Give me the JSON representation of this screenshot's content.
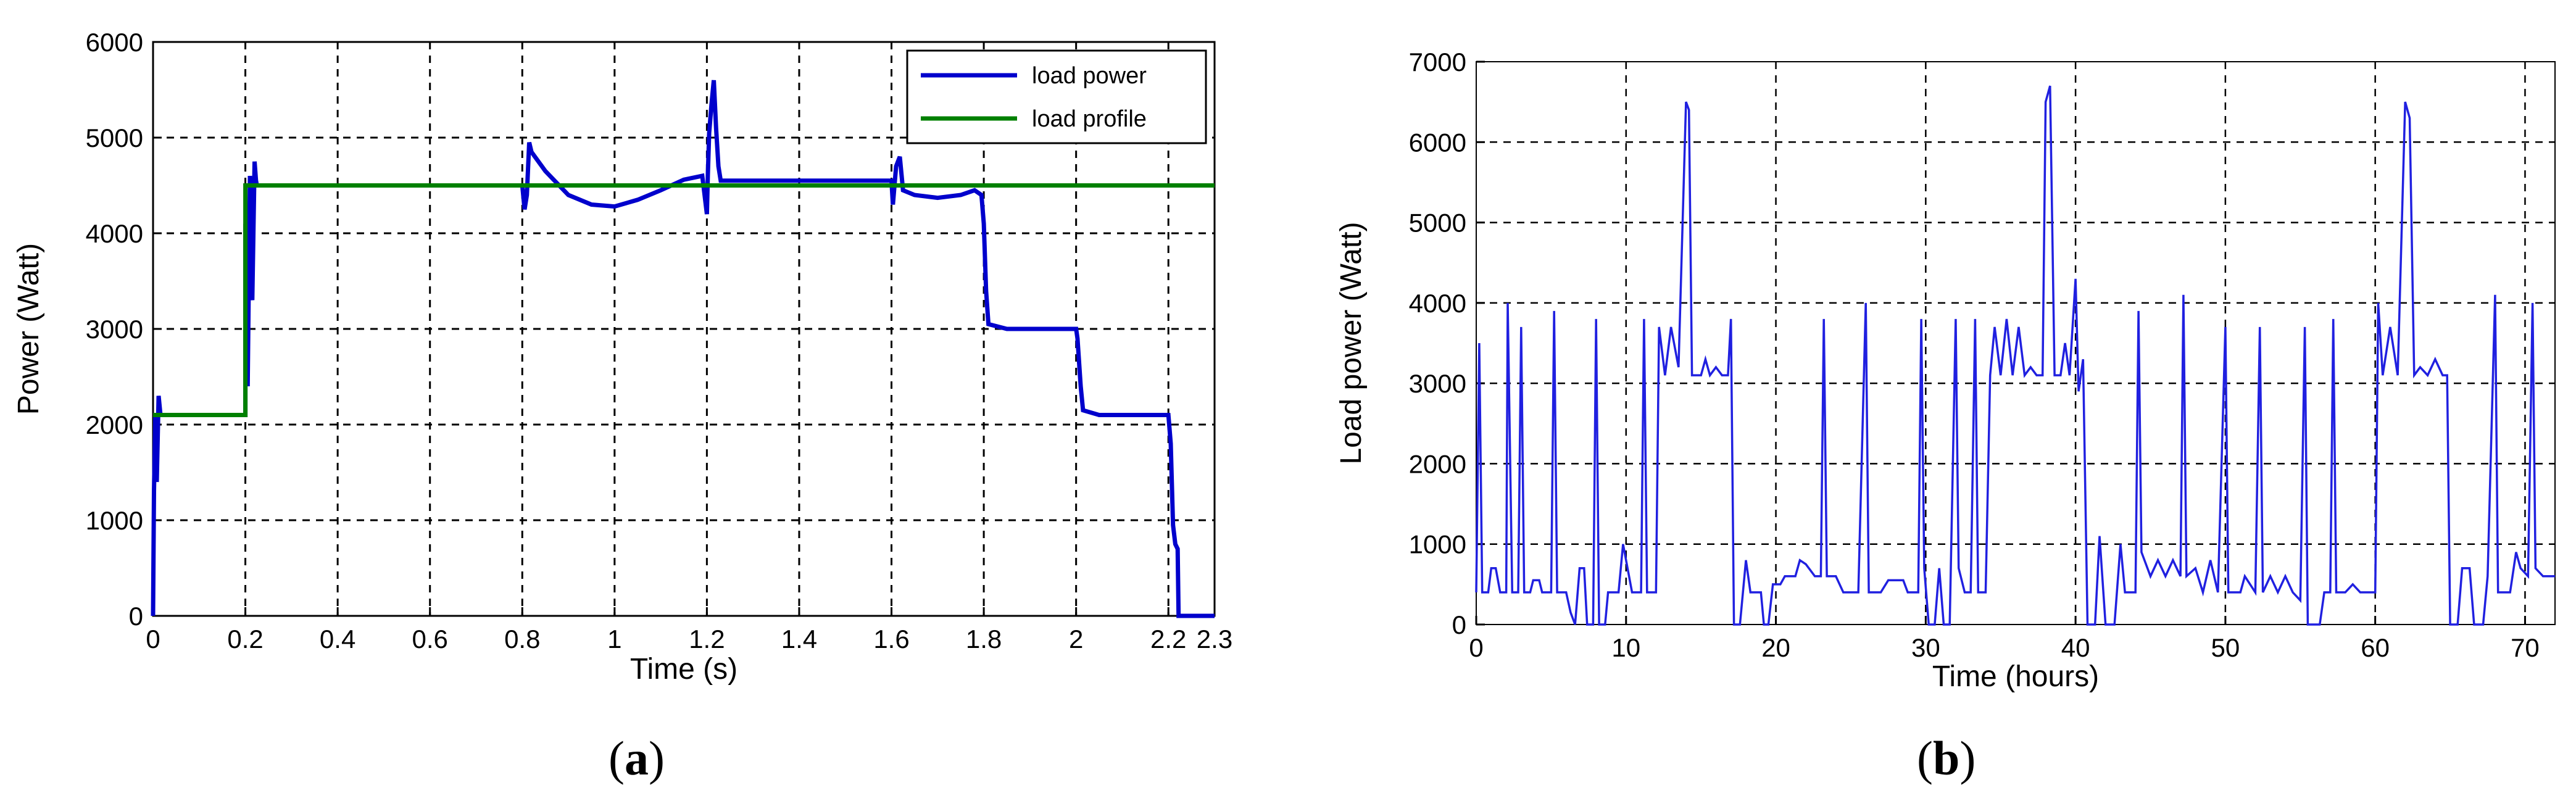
{
  "chart_data": [
    {
      "type": "line",
      "panel_label": "a",
      "xlabel": "Time (s)",
      "ylabel": "Power (Watt)",
      "xlim": [
        0,
        2.3
      ],
      "ylim": [
        0,
        6000
      ],
      "xticks": [
        0,
        0.2,
        0.4,
        0.6,
        0.8,
        1,
        1.2,
        1.4,
        1.6,
        1.8,
        2,
        2.2,
        2.3
      ],
      "xtick_labels": [
        "0",
        "0.2",
        "0.4",
        "0.6",
        "0.8",
        "1",
        "1.2",
        "1.4",
        "1.6",
        "1.8",
        "2",
        "2.2",
        "2.3"
      ],
      "yticks": [
        0,
        1000,
        2000,
        3000,
        4000,
        5000,
        6000
      ],
      "ytick_labels": [
        "0",
        "1000",
        "2000",
        "3000",
        "4000",
        "5000",
        "6000"
      ],
      "grid": true,
      "legend_position": "top-right",
      "series": [
        {
          "name": "load power",
          "color": "#0000cc",
          "points": [
            [
              0,
              0
            ],
            [
              0.002,
              1300
            ],
            [
              0.005,
              2100
            ],
            [
              0.008,
              1400
            ],
            [
              0.012,
              2300
            ],
            [
              0.016,
              2100
            ],
            [
              0.2,
              2100
            ],
            [
              0.2,
              4100
            ],
            [
              0.202,
              3500
            ],
            [
              0.205,
              2400
            ],
            [
              0.21,
              4600
            ],
            [
              0.215,
              3300
            ],
            [
              0.22,
              4750
            ],
            [
              0.223,
              4550
            ],
            [
              0.225,
              4500
            ],
            [
              0.8,
              4500
            ],
            [
              0.805,
              4250
            ],
            [
              0.81,
              4400
            ],
            [
              0.815,
              4950
            ],
            [
              0.82,
              4850
            ],
            [
              0.85,
              4650
            ],
            [
              0.9,
              4400
            ],
            [
              0.95,
              4300
            ],
            [
              1.0,
              4280
            ],
            [
              1.05,
              4350
            ],
            [
              1.1,
              4450
            ],
            [
              1.15,
              4560
            ],
            [
              1.19,
              4600
            ],
            [
              1.2,
              4200
            ],
            [
              1.202,
              4600
            ],
            [
              1.205,
              5050
            ],
            [
              1.21,
              5350
            ],
            [
              1.215,
              5600
            ],
            [
              1.22,
              5100
            ],
            [
              1.225,
              4700
            ],
            [
              1.23,
              4550
            ],
            [
              1.6,
              4550
            ],
            [
              1.603,
              4300
            ],
            [
              1.61,
              4700
            ],
            [
              1.618,
              4800
            ],
            [
              1.625,
              4450
            ],
            [
              1.65,
              4400
            ],
            [
              1.7,
              4370
            ],
            [
              1.75,
              4400
            ],
            [
              1.78,
              4450
            ],
            [
              1.795,
              4400
            ],
            [
              1.8,
              4100
            ],
            [
              1.805,
              3400
            ],
            [
              1.81,
              3050
            ],
            [
              1.85,
              3000
            ],
            [
              2.0,
              3000
            ],
            [
              2.003,
              2900
            ],
            [
              2.01,
              2400
            ],
            [
              2.015,
              2150
            ],
            [
              2.05,
              2100
            ],
            [
              2.1,
              2100
            ],
            [
              2.2,
              2100
            ],
            [
              2.205,
              1800
            ],
            [
              2.21,
              950
            ],
            [
              2.215,
              750
            ],
            [
              2.22,
              700
            ],
            [
              2.222,
              0
            ],
            [
              2.3,
              0
            ]
          ]
        },
        {
          "name": "load profile",
          "color": "#008000",
          "points": [
            [
              0,
              2100
            ],
            [
              0.2,
              2100
            ],
            [
              0.2,
              4500
            ],
            [
              2.3,
              4500
            ]
          ]
        }
      ]
    },
    {
      "type": "line",
      "panel_label": "b",
      "xlabel": "Time (hours)",
      "ylabel": "Load power (Watt)",
      "xlim": [
        0,
        72
      ],
      "ylim": [
        0,
        7000
      ],
      "xticks": [
        0,
        10,
        20,
        30,
        40,
        50,
        60,
        70
      ],
      "xtick_labels": [
        "0",
        "10",
        "20",
        "30",
        "40",
        "50",
        "60",
        "70"
      ],
      "yticks": [
        0,
        1000,
        2000,
        3000,
        4000,
        5000,
        6000,
        7000
      ],
      "ytick_labels": [
        "0",
        "1000",
        "2000",
        "3000",
        "4000",
        "5000",
        "6000",
        "7000"
      ],
      "grid": true,
      "series": [
        {
          "name": "",
          "color": "#2020e0",
          "points": [
            [
              0,
              400
            ],
            [
              0.2,
              3500
            ],
            [
              0.4,
              400
            ],
            [
              0.8,
              400
            ],
            [
              1,
              700
            ],
            [
              1.3,
              700
            ],
            [
              1.6,
              400
            ],
            [
              2,
              400
            ],
            [
              2.1,
              4000
            ],
            [
              2.4,
              400
            ],
            [
              2.8,
              400
            ],
            [
              3,
              3700
            ],
            [
              3.2,
              400
            ],
            [
              3.6,
              400
            ],
            [
              3.8,
              550
            ],
            [
              4.2,
              550
            ],
            [
              4.4,
              400
            ],
            [
              5,
              400
            ],
            [
              5.2,
              3900
            ],
            [
              5.4,
              400
            ],
            [
              6,
              400
            ],
            [
              6.3,
              150
            ],
            [
              6.6,
              0
            ],
            [
              6.9,
              700
            ],
            [
              7.2,
              700
            ],
            [
              7.4,
              0
            ],
            [
              7.8,
              0
            ],
            [
              8,
              3800
            ],
            [
              8.2,
              0
            ],
            [
              8.6,
              0
            ],
            [
              8.8,
              400
            ],
            [
              9.5,
              400
            ],
            [
              9.8,
              1000
            ],
            [
              10.1,
              700
            ],
            [
              10.4,
              400
            ],
            [
              11,
              400
            ],
            [
              11.2,
              3800
            ],
            [
              11.4,
              400
            ],
            [
              12,
              400
            ],
            [
              12.2,
              3700
            ],
            [
              12.6,
              3100
            ],
            [
              13,
              3700
            ],
            [
              13.5,
              3200
            ],
            [
              14,
              6500
            ],
            [
              14.2,
              6400
            ],
            [
              14.4,
              3100
            ],
            [
              15,
              3100
            ],
            [
              15.3,
              3300
            ],
            [
              15.6,
              3100
            ],
            [
              16,
              3200
            ],
            [
              16.4,
              3100
            ],
            [
              16.8,
              3100
            ],
            [
              17,
              3800
            ],
            [
              17.2,
              0
            ],
            [
              17.6,
              0
            ],
            [
              18,
              800
            ],
            [
              18.3,
              400
            ],
            [
              19,
              400
            ],
            [
              19.2,
              0
            ],
            [
              19.5,
              0
            ],
            [
              19.8,
              500
            ],
            [
              20.3,
              500
            ],
            [
              20.6,
              600
            ],
            [
              21.3,
              600
            ],
            [
              21.6,
              800
            ],
            [
              22,
              750
            ],
            [
              22.6,
              600
            ],
            [
              23,
              600
            ],
            [
              23.2,
              3800
            ],
            [
              23.4,
              600
            ],
            [
              24,
              600
            ],
            [
              24.5,
              400
            ],
            [
              25.5,
              400
            ],
            [
              26,
              4000
            ],
            [
              26.2,
              400
            ],
            [
              27,
              400
            ],
            [
              27.5,
              550
            ],
            [
              28.5,
              550
            ],
            [
              28.8,
              400
            ],
            [
              29.5,
              400
            ],
            [
              29.7,
              3800
            ],
            [
              29.9,
              700
            ],
            [
              30.2,
              0
            ],
            [
              30.6,
              0
            ],
            [
              30.9,
              700
            ],
            [
              31.2,
              0
            ],
            [
              31.6,
              0
            ],
            [
              32,
              3800
            ],
            [
              32.2,
              700
            ],
            [
              32.6,
              400
            ],
            [
              33,
              400
            ],
            [
              33.3,
              3800
            ],
            [
              33.5,
              400
            ],
            [
              34,
              400
            ],
            [
              34.3,
              3100
            ],
            [
              34.6,
              3700
            ],
            [
              35,
              3100
            ],
            [
              35.4,
              3800
            ],
            [
              35.8,
              3100
            ],
            [
              36.2,
              3700
            ],
            [
              36.6,
              3100
            ],
            [
              37,
              3200
            ],
            [
              37.4,
              3100
            ],
            [
              37.8,
              3100
            ],
            [
              38,
              6500
            ],
            [
              38.3,
              6700
            ],
            [
              38.6,
              3100
            ],
            [
              39,
              3100
            ],
            [
              39.3,
              3500
            ],
            [
              39.6,
              3100
            ],
            [
              40,
              4300
            ],
            [
              40.2,
              2900
            ],
            [
              40.5,
              3300
            ],
            [
              40.8,
              0
            ],
            [
              41.3,
              0
            ],
            [
              41.6,
              1100
            ],
            [
              42,
              0
            ],
            [
              42.6,
              0
            ],
            [
              43,
              1000
            ],
            [
              43.3,
              400
            ],
            [
              44,
              400
            ],
            [
              44.2,
              3900
            ],
            [
              44.4,
              900
            ],
            [
              45,
              600
            ],
            [
              45.5,
              800
            ],
            [
              46,
              600
            ],
            [
              46.5,
              800
            ],
            [
              47,
              600
            ],
            [
              47.2,
              4100
            ],
            [
              47.4,
              600
            ],
            [
              48,
              700
            ],
            [
              48.5,
              400
            ],
            [
              49,
              800
            ],
            [
              49.5,
              400
            ],
            [
              50,
              3700
            ],
            [
              50.2,
              400
            ],
            [
              51,
              400
            ],
            [
              51.3,
              600
            ],
            [
              52,
              400
            ],
            [
              52.3,
              3700
            ],
            [
              52.5,
              400
            ],
            [
              53,
              600
            ],
            [
              53.5,
              400
            ],
            [
              54,
              600
            ],
            [
              54.5,
              400
            ],
            [
              55,
              300
            ],
            [
              55.3,
              3700
            ],
            [
              55.5,
              0
            ],
            [
              56.3,
              0
            ],
            [
              56.6,
              400
            ],
            [
              57,
              400
            ],
            [
              57.2,
              3800
            ],
            [
              57.4,
              400
            ],
            [
              58,
              400
            ],
            [
              58.5,
              500
            ],
            [
              59,
              400
            ],
            [
              60,
              400
            ],
            [
              60.2,
              4000
            ],
            [
              60.5,
              3100
            ],
            [
              61,
              3700
            ],
            [
              61.5,
              3100
            ],
            [
              62,
              6500
            ],
            [
              62.3,
              6300
            ],
            [
              62.6,
              3100
            ],
            [
              63,
              3200
            ],
            [
              63.5,
              3100
            ],
            [
              64,
              3300
            ],
            [
              64.5,
              3100
            ],
            [
              64.8,
              3100
            ],
            [
              65,
              0
            ],
            [
              65.5,
              0
            ],
            [
              65.8,
              700
            ],
            [
              66.3,
              700
            ],
            [
              66.6,
              0
            ],
            [
              67.2,
              0
            ],
            [
              67.5,
              600
            ],
            [
              68,
              4100
            ],
            [
              68.2,
              400
            ],
            [
              69,
              400
            ],
            [
              69.4,
              900
            ],
            [
              69.7,
              700
            ],
            [
              70.2,
              600
            ],
            [
              70.5,
              4000
            ],
            [
              70.7,
              700
            ],
            [
              71.2,
              600
            ],
            [
              72,
              600
            ]
          ]
        }
      ]
    }
  ]
}
